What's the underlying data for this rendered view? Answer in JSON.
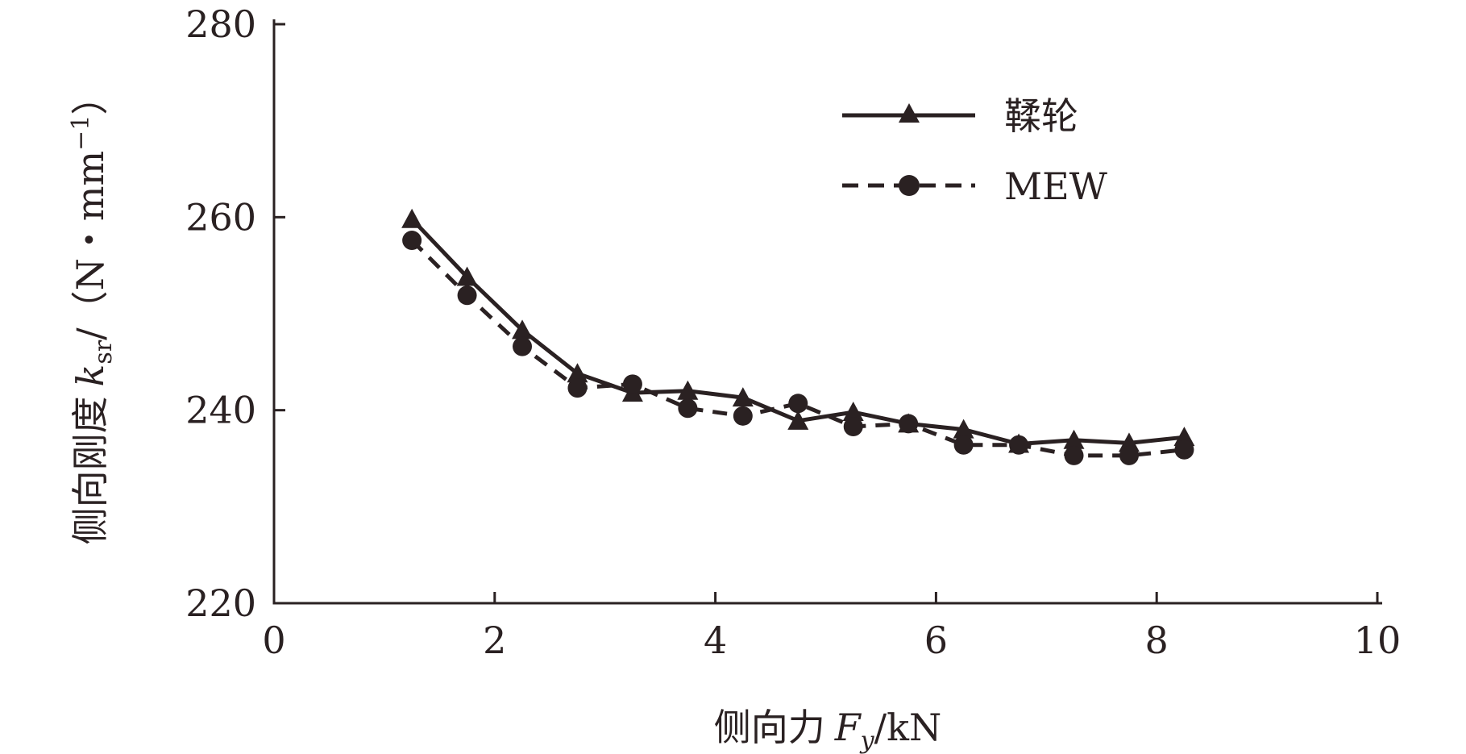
{
  "chart_data": {
    "type": "line",
    "xlabel": {
      "prefix": "侧向力",
      "var": "F",
      "sub": "y",
      "unit": "/kN"
    },
    "ylabel": {
      "prefix": "侧向刚度",
      "var": "k",
      "sub": "sr",
      "unit": "/（N・mm",
      "sup": "−1",
      "close": "）"
    },
    "xlim": [
      0,
      10
    ],
    "ylim": [
      220,
      280
    ],
    "xticks": [
      "0",
      "2",
      "4",
      "6",
      "8",
      "10"
    ],
    "yticks": [
      "220",
      "240",
      "260",
      "280"
    ],
    "grid": false,
    "legend_position": "top-right",
    "series": [
      {
        "name": "鞣轮",
        "marker": "triangle",
        "line": "solid",
        "color": "#2a2122",
        "x": [
          1.25,
          1.75,
          2.25,
          2.75,
          3.25,
          3.75,
          4.25,
          4.75,
          5.25,
          5.75,
          6.25,
          6.75,
          7.25,
          7.75,
          8.25
        ],
        "y": [
          259.8,
          253.8,
          248.3,
          243.8,
          241.8,
          242.0,
          241.3,
          238.9,
          239.8,
          238.6,
          238.0,
          236.5,
          236.9,
          236.6,
          237.2
        ]
      },
      {
        "name": "MEW",
        "marker": "circle",
        "line": "dashed",
        "color": "#2a2122",
        "x": [
          1.25,
          1.75,
          2.25,
          2.75,
          3.25,
          3.75,
          4.25,
          4.75,
          5.25,
          5.75,
          6.25,
          6.75,
          7.25,
          7.75,
          8.25
        ],
        "y": [
          257.6,
          251.9,
          246.6,
          242.3,
          242.7,
          240.2,
          239.4,
          240.7,
          238.3,
          238.6,
          236.4,
          236.4,
          235.3,
          235.3,
          235.9
        ]
      }
    ]
  }
}
